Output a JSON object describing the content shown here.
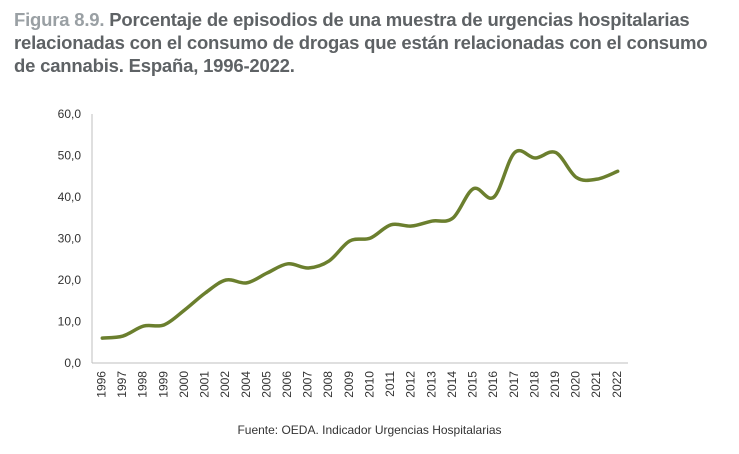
{
  "figure_label": "Figura 8.9.",
  "title": "Porcentaje de episodios de una muestra de urgencias hospitalarias relacionadas con el consumo de drogas que están relacionadas con el consumo de cannabis. España, 1996-2022.",
  "source": "Fuente: OEDA. Indicador Urgencias Hospitalarias",
  "chart_data": {
    "type": "line",
    "title": "Porcentaje de episodios de una muestra de urgencias hospitalarias relacionadas con el consumo de drogas que están relacionadas con el consumo de cannabis. España, 1996-2022.",
    "xlabel": "",
    "ylabel": "",
    "ylim": [
      0,
      60
    ],
    "yticks": [
      "0,0",
      "10,0",
      "20,0",
      "30,0",
      "40,0",
      "50,0",
      "60,0"
    ],
    "grid": false,
    "legend": "none",
    "color": "#6b7f2e",
    "categories": [
      "1996",
      "1997",
      "1998",
      "1999",
      "2000",
      "2001",
      "2002",
      "2004",
      "2005",
      "2006",
      "2007",
      "2008",
      "2009",
      "2010",
      "2011",
      "2012",
      "2013",
      "2014",
      "2015",
      "2016",
      "2017",
      "2018",
      "2019",
      "2020",
      "2021",
      "2022"
    ],
    "values": [
      6.0,
      6.5,
      8.9,
      9.2,
      12.8,
      16.9,
      20.0,
      19.3,
      21.7,
      23.9,
      22.9,
      24.6,
      29.4,
      30.1,
      33.3,
      33.0,
      34.2,
      34.9,
      42.0,
      40.0,
      50.7,
      49.4,
      50.7,
      44.7,
      44.3,
      46.2
    ]
  }
}
